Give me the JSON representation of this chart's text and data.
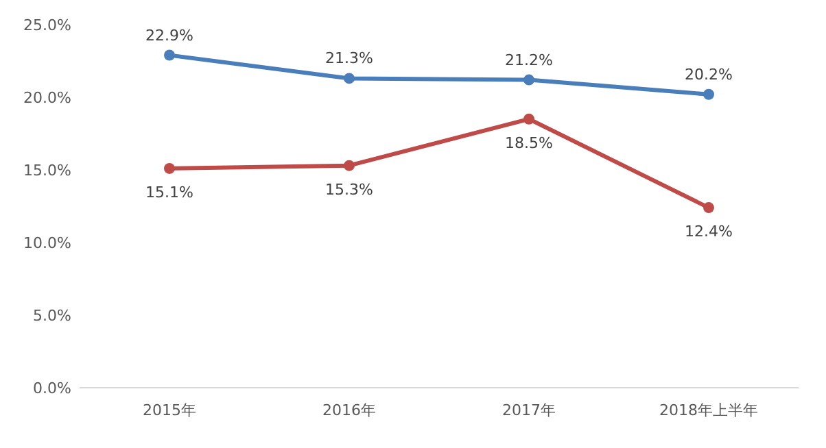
{
  "chart_data": {
    "type": "line",
    "categories": [
      "2015年",
      "2016年",
      "2017年",
      "2018年上半年"
    ],
    "series": [
      {
        "color": "#4a7ebb",
        "values": [
          22.9,
          21.3,
          21.2,
          20.2
        ],
        "value_labels": [
          "22.9%",
          "21.3%",
          "21.2%",
          "20.2%"
        ]
      },
      {
        "color": "#be4b48",
        "values": [
          15.1,
          15.3,
          18.5,
          12.4
        ],
        "value_labels": [
          "15.1%",
          "15.3%",
          "18.5%",
          "12.4%"
        ]
      }
    ],
    "ylim": [
      0,
      25
    ],
    "yticks": [
      {
        "value": 0,
        "label": "0.0%"
      },
      {
        "value": 5,
        "label": "5.0%"
      },
      {
        "value": 10,
        "label": "10.0%"
      },
      {
        "value": 15,
        "label": "15.0%"
      },
      {
        "value": 20,
        "label": "20.0%"
      },
      {
        "value": 25,
        "label": "25.0%"
      }
    ],
    "grid": false,
    "marker": "circle",
    "line_style": "solid"
  }
}
